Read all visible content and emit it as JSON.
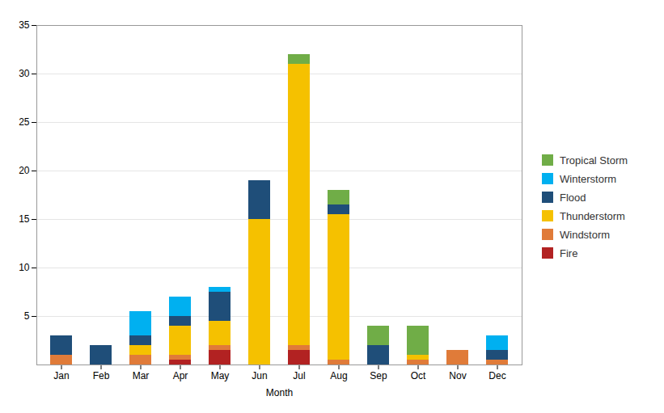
{
  "chart_data": {
    "type": "bar",
    "stacked": true,
    "xlabel": "Month",
    "categories": [
      "Jan",
      "Feb",
      "Mar",
      "Apr",
      "May",
      "Jun",
      "Jul",
      "Aug",
      "Sep",
      "Oct",
      "Nov",
      "Dec"
    ],
    "series": [
      {
        "name": "Fire",
        "color": "#b22222",
        "values": [
          0,
          0,
          0,
          0.5,
          1.5,
          0,
          1.5,
          0,
          0,
          0,
          0,
          0
        ]
      },
      {
        "name": "Windstorm",
        "color": "#e07b39",
        "values": [
          1,
          0,
          1,
          0.5,
          0.5,
          0,
          0.5,
          0.5,
          0,
          0.5,
          1.5,
          0.5
        ]
      },
      {
        "name": "Thunderstorm",
        "color": "#f5c100",
        "values": [
          0,
          0,
          1,
          3,
          2.5,
          15,
          29,
          15,
          0,
          0.5,
          0,
          0
        ]
      },
      {
        "name": "Flood",
        "color": "#1f4e79",
        "values": [
          2,
          2,
          1,
          1,
          3,
          4,
          0,
          1,
          2,
          0,
          0,
          1
        ]
      },
      {
        "name": "Winterstorm",
        "color": "#00b0f0",
        "values": [
          0,
          0,
          2.5,
          2,
          0.5,
          0,
          0,
          0,
          0,
          0,
          0,
          1.5
        ]
      },
      {
        "name": "Tropical Storm",
        "color": "#70ad47",
        "values": [
          0,
          0,
          0,
          0,
          0,
          0,
          1,
          1.5,
          2,
          3,
          0,
          0
        ]
      }
    ],
    "ylim": [
      0,
      35
    ],
    "yticks": [
      5,
      10,
      15,
      20,
      25,
      30,
      35
    ],
    "grid": true,
    "legend": "right"
  }
}
